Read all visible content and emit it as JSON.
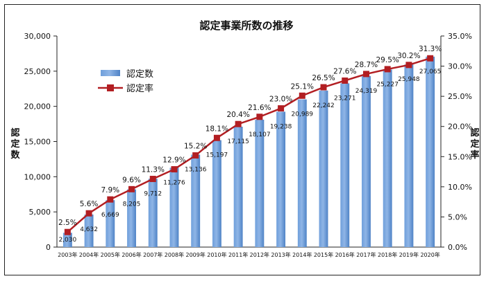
{
  "chart_data": {
    "type": "bar+line",
    "title": "認定事業所数の推移",
    "categories": [
      "2003年",
      "2004年",
      "2005年",
      "2006年",
      "2007年",
      "2008年",
      "2009年",
      "2010年",
      "2011年",
      "2012年",
      "2013年",
      "2014年",
      "2015年",
      "2016年",
      "2017年",
      "2018年",
      "2019年",
      "2020年"
    ],
    "series": [
      {
        "name": "認定数",
        "type": "bar",
        "axis": "left",
        "values": [
          2030,
          4632,
          6669,
          8205,
          9712,
          11276,
          13136,
          15197,
          17115,
          18107,
          19238,
          20989,
          22242,
          23271,
          24319,
          25227,
          25948,
          27065
        ],
        "labels": [
          "2,030",
          "4,632",
          "6,669",
          "8,205",
          "9,712",
          "11,276",
          "13,136",
          "15,197",
          "17,115",
          "18,107",
          "19,238",
          "20,989",
          "22,242",
          "23,271",
          "24,319",
          "25,227",
          "25,948",
          "27,065"
        ]
      },
      {
        "name": "認定率",
        "type": "line",
        "axis": "right",
        "values": [
          2.5,
          5.6,
          7.9,
          9.6,
          11.3,
          12.9,
          15.2,
          18.1,
          20.4,
          21.6,
          23.0,
          25.1,
          26.5,
          27.6,
          28.7,
          29.5,
          30.2,
          31.3
        ],
        "labels": [
          "2.5%",
          "5.6%",
          "7.9%",
          "9.6%",
          "11.3%",
          "12.9%",
          "15.2%",
          "18.1%",
          "20.4%",
          "21.6%",
          "23.0%",
          "25.1%",
          "26.5%",
          "27.6%",
          "28.7%",
          "29.5%",
          "30.2%",
          "31.3%"
        ]
      }
    ],
    "left_axis": {
      "label": "認定数",
      "ylim": [
        0,
        30000
      ],
      "ticks": [
        0,
        5000,
        10000,
        15000,
        20000,
        25000,
        30000
      ],
      "tick_labels": [
        "0",
        "5,000",
        "10,000",
        "15,000",
        "20,000",
        "25,000",
        "30,000"
      ]
    },
    "right_axis": {
      "label": "認定率",
      "ylim": [
        0,
        35
      ],
      "ticks": [
        0,
        5,
        10,
        15,
        20,
        25,
        30,
        35
      ],
      "tick_labels": [
        "0.0%",
        "5.0%",
        "10.0%",
        "15.0%",
        "20.0%",
        "25.0%",
        "30.0%",
        "35.0%"
      ]
    },
    "legend": {
      "placement": "top-left",
      "entries": [
        "認定数",
        "認定率"
      ]
    },
    "grid": false,
    "colors": {
      "bar": "#5b8fd0",
      "bar_light": "#a9c6ea",
      "line": "#b21e22",
      "marker": "#b21e22"
    }
  }
}
